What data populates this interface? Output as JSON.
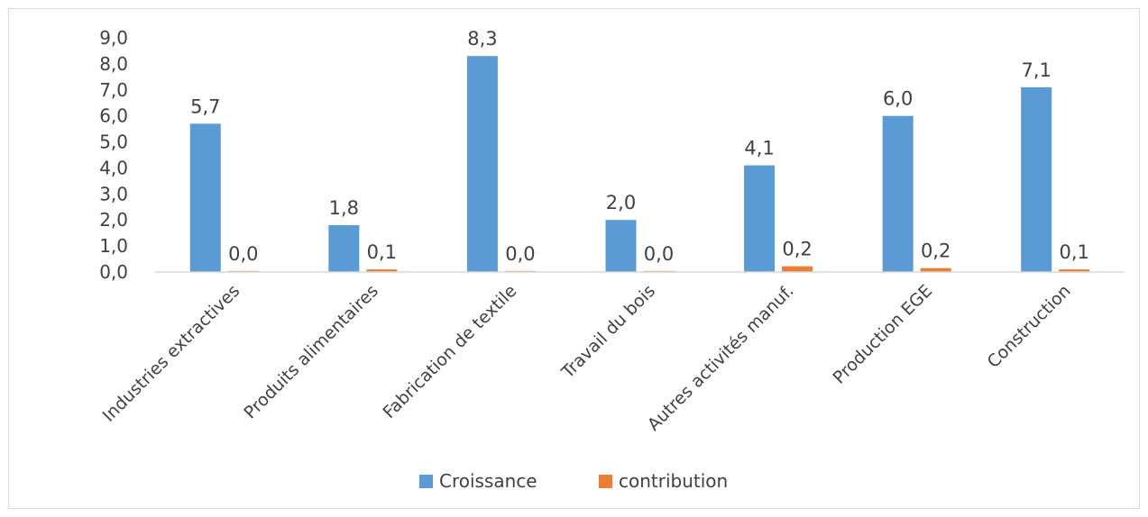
{
  "chart_data": {
    "type": "bar",
    "categories": [
      "Industries extractives",
      "Produits alimentaires",
      "Fabrication de textile",
      "Travail du bois",
      "Autres activités manuf.",
      "Production EGE",
      "Construction"
    ],
    "series": [
      {
        "name": "Croissance",
        "color": "#5b9bd5",
        "values": [
          5.7,
          1.8,
          8.3,
          2.0,
          4.1,
          6.0,
          7.1
        ],
        "labels": [
          "5,7",
          "1,8",
          "8,3",
          "2,0",
          "4,1",
          "6,0",
          "7,1"
        ]
      },
      {
        "name": "contribution",
        "color": "#ed7d31",
        "values": [
          0.04,
          0.1,
          0.04,
          0.04,
          0.22,
          0.15,
          0.1
        ],
        "labels": [
          "0,0",
          "0,1",
          "0,0",
          "0,0",
          "0,2",
          "0,2",
          "0,1"
        ]
      }
    ],
    "ylim": [
      0,
      9
    ],
    "y_ticks": [
      "0,0",
      "1,0",
      "2,0",
      "3,0",
      "4,0",
      "5,0",
      "6,0",
      "7,0",
      "8,0",
      "9,0"
    ],
    "grid": false,
    "legend_position": "bottom",
    "title": "",
    "xlabel": "",
    "ylabel": ""
  }
}
